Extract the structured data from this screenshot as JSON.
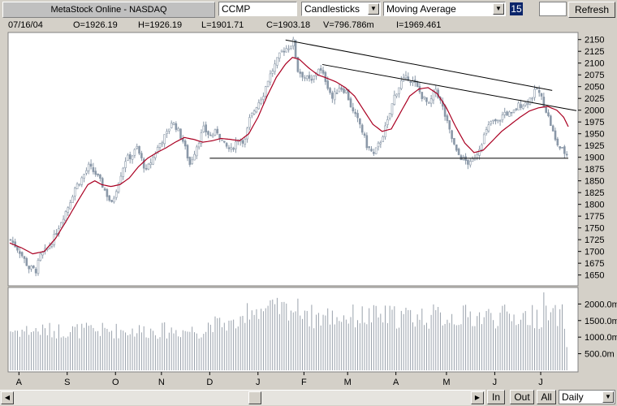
{
  "toolbar": {
    "title": "MetaStock Online - NASDAQ",
    "symbol": "CCMP",
    "chart_style": "Candlesticks",
    "indicator": "Moving Average",
    "period": "15",
    "refresh_label": "Refresh"
  },
  "info": {
    "date": "07/16/04",
    "open": "O=1926.19",
    "high": "H=1926.19",
    "low": "L=1901.71",
    "close": "C=1903.18",
    "volume": "V=796.786m",
    "open_interest": "I=1969.461"
  },
  "footer": {
    "zoom_in": "In",
    "zoom_out": "Out",
    "all": "All",
    "interval": "Daily"
  },
  "colors": {
    "candles": "#8a98a8",
    "moving_average": "#aa0022",
    "trendline": "#000000",
    "panel_bg": "#ffffff",
    "gridline": "#e4e4e4"
  },
  "chart_data": {
    "type": "candlestick",
    "price_axis": {
      "ticks": [
        1650,
        1675,
        1700,
        1725,
        1750,
        1775,
        1800,
        1825,
        1850,
        1875,
        1900,
        1925,
        1950,
        1975,
        2000,
        2025,
        2050,
        2075,
        2100,
        2125,
        2150
      ],
      "range": [
        1627,
        2165
      ]
    },
    "volume_axis": {
      "ticks": [
        500,
        1000,
        1500,
        2000
      ],
      "tick_labels": [
        "500.0m",
        "1000.0m",
        "1500.0m",
        "2000.0m"
      ],
      "range": [
        0,
        2450
      ]
    },
    "x_labels": [
      "A",
      "S",
      "O",
      "N",
      "D",
      "J",
      "F",
      "M",
      "A",
      "M",
      "J",
      "J"
    ],
    "x_label_sessions": [
      4,
      25,
      46,
      66,
      87,
      108,
      128,
      147,
      168,
      190,
      211,
      231
    ],
    "sessions": 243,
    "close_anchors": [
      [
        0,
        1725
      ],
      [
        4,
        1700
      ],
      [
        8,
        1665
      ],
      [
        11,
        1660
      ],
      [
        13,
        1690
      ],
      [
        16,
        1705
      ],
      [
        19,
        1730
      ],
      [
        22,
        1765
      ],
      [
        25,
        1795
      ],
      [
        28,
        1835
      ],
      [
        31,
        1855
      ],
      [
        34,
        1880
      ],
      [
        37,
        1865
      ],
      [
        40,
        1840
      ],
      [
        44,
        1800
      ],
      [
        47,
        1850
      ],
      [
        50,
        1895
      ],
      [
        53,
        1905
      ],
      [
        55,
        1920
      ],
      [
        59,
        1870
      ],
      [
        62,
        1900
      ],
      [
        65,
        1930
      ],
      [
        68,
        1950
      ],
      [
        70,
        1975
      ],
      [
        72,
        1965
      ],
      [
        75,
        1935
      ],
      [
        78,
        1885
      ],
      [
        81,
        1925
      ],
      [
        84,
        1960
      ],
      [
        87,
        1945
      ],
      [
        90,
        1955
      ],
      [
        93,
        1925
      ],
      [
        96,
        1915
      ],
      [
        99,
        1940
      ],
      [
        102,
        1935
      ],
      [
        104,
        1980
      ],
      [
        107,
        2010
      ],
      [
        110,
        2035
      ],
      [
        112,
        2065
      ],
      [
        115,
        2095
      ],
      [
        118,
        2125
      ],
      [
        121,
        2135
      ],
      [
        123,
        2145
      ],
      [
        125,
        2085
      ],
      [
        128,
        2070
      ],
      [
        131,
        2060
      ],
      [
        134,
        2090
      ],
      [
        137,
        2065
      ],
      [
        140,
        2025
      ],
      [
        143,
        2050
      ],
      [
        146,
        2040
      ],
      [
        149,
        1995
      ],
      [
        152,
        1970
      ],
      [
        155,
        1925
      ],
      [
        158,
        1905
      ],
      [
        161,
        1935
      ],
      [
        164,
        1975
      ],
      [
        167,
        2030
      ],
      [
        170,
        2060
      ],
      [
        173,
        2070
      ],
      [
        176,
        2055
      ],
      [
        179,
        2030
      ],
      [
        182,
        2010
      ],
      [
        185,
        2045
      ],
      [
        188,
        2005
      ],
      [
        191,
        1955
      ],
      [
        194,
        1910
      ],
      [
        197,
        1895
      ],
      [
        200,
        1885
      ],
      [
        203,
        1910
      ],
      [
        206,
        1945
      ],
      [
        209,
        1975
      ],
      [
        212,
        1975
      ],
      [
        215,
        1995
      ],
      [
        218,
        1990
      ],
      [
        221,
        2010
      ],
      [
        224,
        2015
      ],
      [
        227,
        2030
      ],
      [
        229,
        2045
      ],
      [
        231,
        2025
      ],
      [
        233,
        2000
      ],
      [
        235,
        1970
      ],
      [
        237,
        1935
      ],
      [
        239,
        1920
      ],
      [
        241,
        1910
      ],
      [
        243,
        1903
      ]
    ],
    "moving_average_anchors": [
      [
        0,
        1718
      ],
      [
        5,
        1708
      ],
      [
        10,
        1695
      ],
      [
        15,
        1700
      ],
      [
        20,
        1728
      ],
      [
        25,
        1768
      ],
      [
        30,
        1810
      ],
      [
        34,
        1842
      ],
      [
        37,
        1850
      ],
      [
        40,
        1842
      ],
      [
        44,
        1838
      ],
      [
        48,
        1842
      ],
      [
        52,
        1856
      ],
      [
        56,
        1880
      ],
      [
        60,
        1898
      ],
      [
        64,
        1910
      ],
      [
        68,
        1920
      ],
      [
        72,
        1932
      ],
      [
        76,
        1942
      ],
      [
        80,
        1938
      ],
      [
        84,
        1932
      ],
      [
        88,
        1935
      ],
      [
        92,
        1940
      ],
      [
        96,
        1938
      ],
      [
        100,
        1935
      ],
      [
        104,
        1950
      ],
      [
        108,
        1985
      ],
      [
        112,
        2030
      ],
      [
        116,
        2070
      ],
      [
        120,
        2098
      ],
      [
        123,
        2112
      ],
      [
        126,
        2108
      ],
      [
        130,
        2090
      ],
      [
        134,
        2075
      ],
      [
        138,
        2068
      ],
      [
        142,
        2060
      ],
      [
        146,
        2048
      ],
      [
        150,
        2030
      ],
      [
        154,
        2000
      ],
      [
        158,
        1970
      ],
      [
        162,
        1955
      ],
      [
        166,
        1960
      ],
      [
        170,
        1995
      ],
      [
        174,
        2030
      ],
      [
        178,
        2045
      ],
      [
        182,
        2048
      ],
      [
        186,
        2035
      ],
      [
        190,
        2005
      ],
      [
        194,
        1965
      ],
      [
        198,
        1930
      ],
      [
        202,
        1910
      ],
      [
        206,
        1915
      ],
      [
        210,
        1935
      ],
      [
        214,
        1955
      ],
      [
        218,
        1970
      ],
      [
        222,
        1985
      ],
      [
        226,
        1998
      ],
      [
        230,
        2005
      ],
      [
        234,
        2008
      ],
      [
        238,
        2000
      ],
      [
        241,
        1985
      ],
      [
        243,
        1965
      ]
    ],
    "trendlines": [
      {
        "from": [
          120,
          2149
        ],
        "to": [
          236,
          2042
        ]
      },
      {
        "from": [
          136,
          2097
        ],
        "to": [
          252,
          1999
        ]
      },
      {
        "from": [
          87,
          1898
        ],
        "to": [
          243,
          1898
        ]
      }
    ],
    "volume_bars_description": "daily volume bars"
  }
}
